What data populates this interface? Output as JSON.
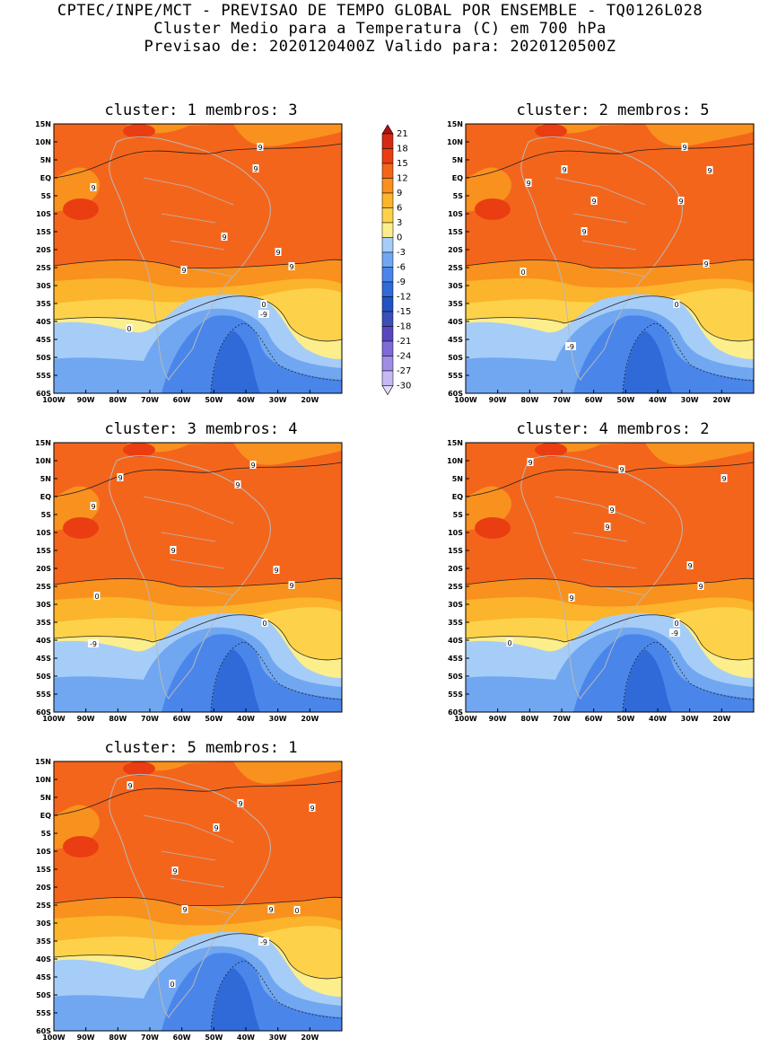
{
  "header": {
    "line1": "CPTEC/INPE/MCT - PREVISAO DE TEMPO GLOBAL POR ENSEMBLE - TQ0126L028",
    "line2": "Cluster Medio para a Temperatura (C) em 700 hPa",
    "line3": "Previsao de: 2020120400Z   Valido para: 2020120500Z"
  },
  "axes": {
    "lat_labels": [
      "15N",
      "10N",
      "5N",
      "EQ",
      "5S",
      "10S",
      "15S",
      "20S",
      "25S",
      "30S",
      "35S",
      "40S",
      "45S",
      "50S",
      "55S",
      "60S"
    ],
    "lon_labels": [
      "100W",
      "90W",
      "80W",
      "70W",
      "60W",
      "50W",
      "40W",
      "30W",
      "20W"
    ]
  },
  "colorbar": {
    "levels": [
      "21",
      "18",
      "15",
      "12",
      "9",
      "6",
      "3",
      "0",
      "-3",
      "-6",
      "-9",
      "-12",
      "-15",
      "-18",
      "-21",
      "-24",
      "-27",
      "-30"
    ],
    "colors": [
      "#b01010",
      "#d42a14",
      "#ea3e12",
      "#f4651c",
      "#f9911e",
      "#fbb42b",
      "#fdd24a",
      "#fdee8c",
      "#a6cdf8",
      "#70a7f0",
      "#4a86ea",
      "#2f6ad8",
      "#2352c2",
      "#3b4fb8",
      "#5848c0",
      "#7f6ad8",
      "#a08ee6",
      "#c6b8f2",
      "#e2daf8"
    ]
  },
  "panels": [
    {
      "title": "cluster: 1   membros: 3",
      "contour_labels": [
        "9",
        "9",
        "9",
        "9",
        "9",
        "9",
        "9",
        "0",
        "0",
        "-9"
      ]
    },
    {
      "title": "cluster: 2   membros: 5",
      "contour_labels": [
        "9",
        "9",
        "9",
        "9",
        "9",
        "9",
        "9",
        "9",
        "0",
        "0",
        "-9"
      ]
    },
    {
      "title": "cluster: 3   membros: 4",
      "contour_labels": [
        "9",
        "9",
        "9",
        "9",
        "9",
        "9",
        "9",
        "0",
        "0",
        "-9"
      ]
    },
    {
      "title": "cluster: 4   membros: 2",
      "contour_labels": [
        "9",
        "9",
        "9",
        "9",
        "9",
        "9",
        "9",
        "9",
        "0",
        "0",
        "-9"
      ]
    },
    {
      "title": "cluster: 5   membros: 1",
      "contour_labels": [
        "9",
        "9",
        "9",
        "9",
        "9",
        "9",
        "9",
        "0",
        "0",
        "-9"
      ]
    }
  ]
}
